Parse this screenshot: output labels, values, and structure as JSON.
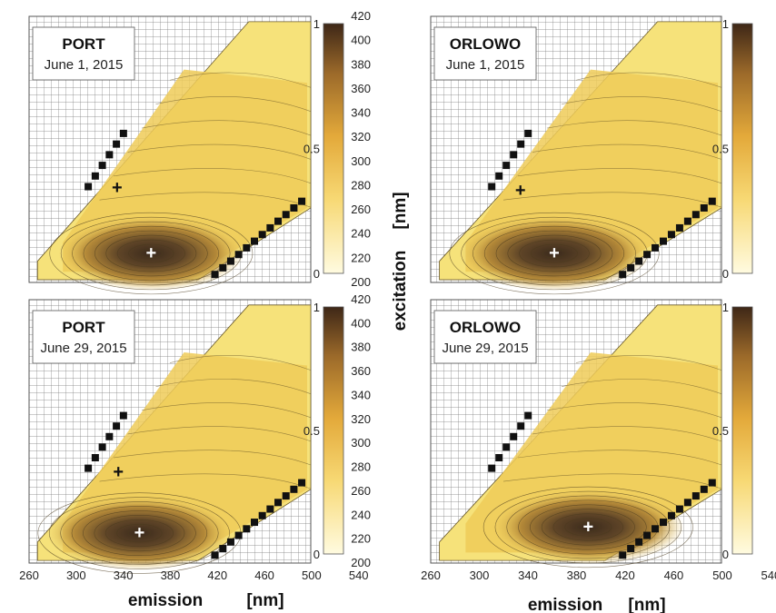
{
  "chart_data": {
    "type": "heatmap",
    "xlabel": "emission",
    "xunit": "[nm]",
    "ylabel": "excitation",
    "yunit": "[nm]",
    "xlim": [
      260,
      540
    ],
    "ylim": [
      200,
      420
    ],
    "x_ticks": [
      "260",
      "300",
      "340",
      "380",
      "420",
      "460",
      "500",
      "540"
    ],
    "y_ticks": [
      "200",
      "220",
      "240",
      "260",
      "280",
      "300",
      "320",
      "340",
      "360",
      "380",
      "400",
      "420"
    ],
    "colorbar": {
      "min": 0,
      "max": 1,
      "ticks": [
        "0",
        "0.5",
        "1"
      ],
      "colors": [
        "#fffbe0",
        "#f7d873",
        "#e3a93a",
        "#9c6a2a",
        "#3e2717"
      ]
    },
    "grid": true,
    "panels": [
      {
        "site": "PORT",
        "date": "June 1, 2015",
        "peaks": [
          {
            "marker": "+",
            "color": "#111111",
            "em": 335,
            "ex": 278
          },
          {
            "marker": "+",
            "color": "#ffffff",
            "em": 364,
            "ex": 224
          }
        ]
      },
      {
        "site": "ORLOWO",
        "date": "June 1, 2015",
        "peaks": [
          {
            "marker": "+",
            "color": "#111111",
            "em": 334,
            "ex": 276
          },
          {
            "marker": "+",
            "color": "#ffffff",
            "em": 362,
            "ex": 224
          }
        ]
      },
      {
        "site": "PORT",
        "date": "June 29, 2015",
        "peaks": [
          {
            "marker": "+",
            "color": "#111111",
            "em": 336,
            "ex": 276
          },
          {
            "marker": "+",
            "color": "#ffffff",
            "em": 354,
            "ex": 225
          }
        ]
      },
      {
        "site": "ORLOWO",
        "date": "June 29, 2015",
        "peaks": [
          {
            "marker": "+",
            "color": "#111111",
            "em": null,
            "ex": null
          },
          {
            "marker": "+",
            "color": "#ffffff",
            "em": 390,
            "ex": 230
          }
        ]
      }
    ]
  }
}
